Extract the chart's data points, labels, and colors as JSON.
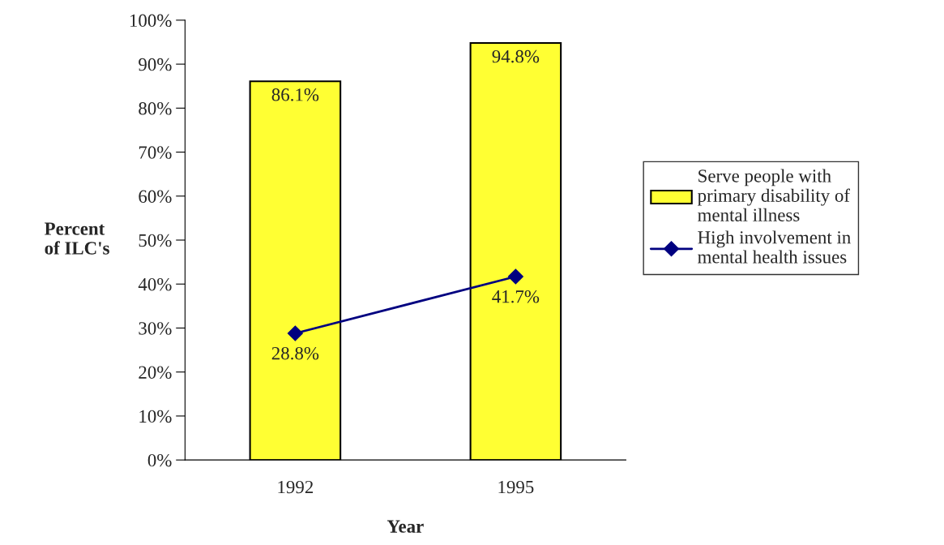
{
  "chart_data": {
    "type": "bar",
    "xlabel": "Year",
    "ylabel": "Percent\nof ILC's",
    "categories": [
      "1992",
      "1995"
    ],
    "series": [
      {
        "name": "Serve people with\nprimary disability of\nmental illness",
        "color": "#ffff33",
        "values": [
          86.1,
          94.8
        ],
        "value_labels": [
          "86.1%",
          "94.8%"
        ]
      },
      {
        "name": "High involvement in\nmental health issues",
        "type": "line",
        "color": "#000080",
        "values": [
          28.8,
          41.7
        ],
        "value_labels": [
          "28.8%",
          "41.7%"
        ],
        "marker": "diamond",
        "line_style": "solid"
      }
    ],
    "ylim": [
      0,
      100
    ],
    "yticks": [
      {
        "value": 0,
        "label": "0%"
      },
      {
        "value": 10,
        "label": "10%"
      },
      {
        "value": 20,
        "label": "20%"
      },
      {
        "value": 30,
        "label": "30%"
      },
      {
        "value": 40,
        "label": "40%"
      },
      {
        "value": 50,
        "label": "50%"
      },
      {
        "value": 60,
        "label": "60%"
      },
      {
        "value": 70,
        "label": "70%"
      },
      {
        "value": 80,
        "label": "80%"
      },
      {
        "value": 90,
        "label": "90%"
      },
      {
        "value": 100,
        "label": "100%"
      }
    ],
    "grid": false,
    "legend": "right"
  }
}
